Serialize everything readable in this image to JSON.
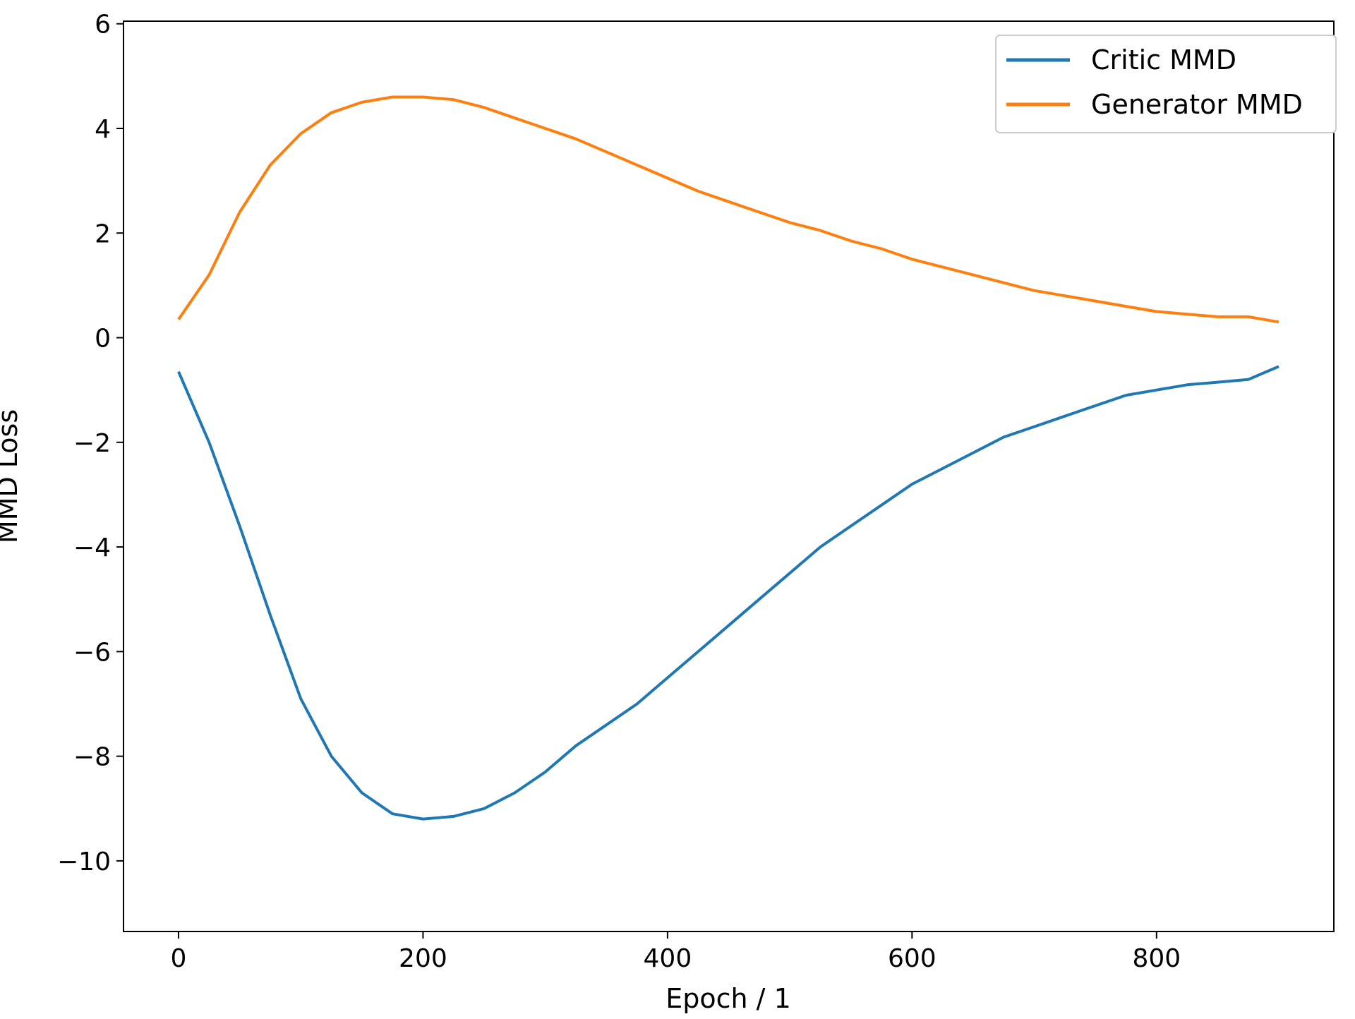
{
  "chart_data": {
    "type": "line",
    "title": "",
    "xlabel": "Epoch / 1",
    "ylabel": "MMD Loss",
    "xlim": [
      -45,
      945
    ],
    "ylim": [
      -11.35,
      6.05
    ],
    "xticks": [
      0,
      200,
      400,
      600,
      800
    ],
    "xtick_labels": [
      "0",
      "200",
      "400",
      "600",
      "800"
    ],
    "yticks": [
      -10,
      -8,
      -6,
      -4,
      -2,
      0,
      2,
      4,
      6
    ],
    "ytick_labels": [
      "−10",
      "−8",
      "−6",
      "−4",
      "−2",
      "0",
      "2",
      "4",
      "6"
    ],
    "grid": false,
    "legend_position": "top-right",
    "series": [
      {
        "name": "Critic MMD",
        "color": "#1f77b4",
        "x": [
          0,
          25,
          50,
          75,
          100,
          125,
          150,
          175,
          200,
          225,
          250,
          275,
          300,
          325,
          350,
          375,
          400,
          425,
          450,
          475,
          500,
          525,
          550,
          575,
          600,
          625,
          650,
          675,
          700,
          725,
          750,
          775,
          800,
          825,
          850,
          875,
          900
        ],
        "y": [
          -0.65,
          -2.0,
          -3.6,
          -5.3,
          -6.9,
          -8.0,
          -8.7,
          -9.1,
          -9.2,
          -9.15,
          -9.0,
          -8.7,
          -8.3,
          -7.8,
          -7.4,
          -7.0,
          -6.5,
          -6.0,
          -5.5,
          -5.0,
          -4.5,
          -4.0,
          -3.6,
          -3.2,
          -2.8,
          -2.5,
          -2.2,
          -1.9,
          -1.7,
          -1.5,
          -1.3,
          -1.1,
          -1.0,
          -0.9,
          -0.85,
          -0.8,
          -0.55
        ]
      },
      {
        "name": "Generator MMD",
        "color": "#ff7f0e",
        "x": [
          0,
          25,
          50,
          75,
          100,
          125,
          150,
          175,
          200,
          225,
          250,
          275,
          300,
          325,
          350,
          375,
          400,
          425,
          450,
          475,
          500,
          525,
          550,
          575,
          600,
          625,
          650,
          675,
          700,
          725,
          750,
          775,
          800,
          825,
          850,
          875,
          900
        ],
        "y": [
          0.35,
          1.2,
          2.4,
          3.3,
          3.9,
          4.3,
          4.5,
          4.6,
          4.6,
          4.55,
          4.4,
          4.2,
          4.0,
          3.8,
          3.55,
          3.3,
          3.05,
          2.8,
          2.6,
          2.4,
          2.2,
          2.05,
          1.85,
          1.7,
          1.5,
          1.35,
          1.2,
          1.05,
          0.9,
          0.8,
          0.7,
          0.6,
          0.5,
          0.45,
          0.4,
          0.4,
          0.3
        ]
      }
    ]
  }
}
